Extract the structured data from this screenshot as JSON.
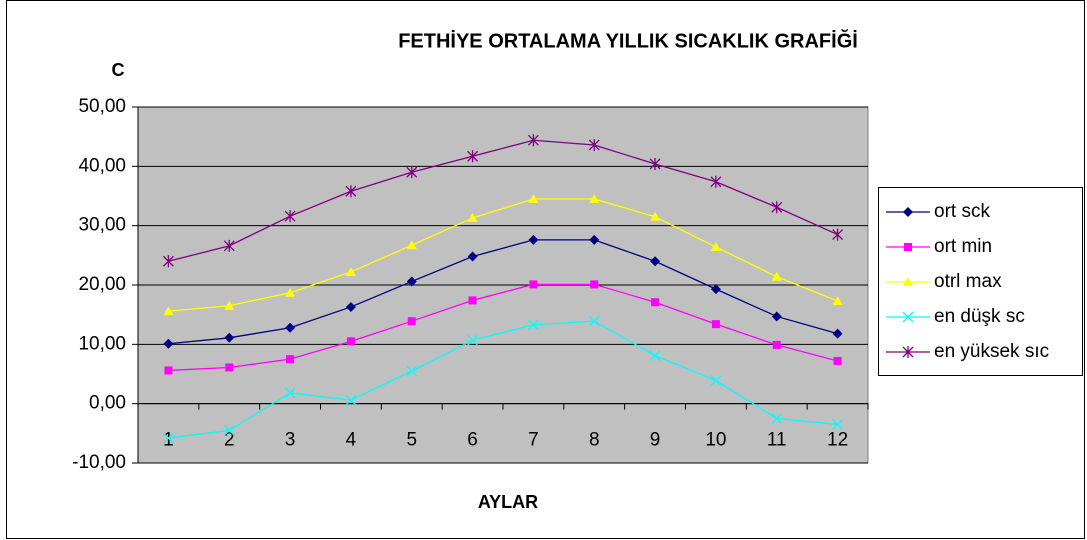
{
  "chart_data": {
    "type": "line",
    "title": "FETHİYE ORTALAMA YILLIK SICAKLIK GRAFİĞİ",
    "y_label": "C",
    "x_label": "AYLAR",
    "categories": [
      "1",
      "2",
      "3",
      "4",
      "5",
      "6",
      "7",
      "8",
      "9",
      "10",
      "11",
      "12"
    ],
    "series": [
      {
        "name": "ort sck",
        "color": "#000080",
        "marker": "diamond",
        "values": [
          10.1,
          11.1,
          12.8,
          16.3,
          20.6,
          24.8,
          27.6,
          27.6,
          24.0,
          19.3,
          14.7,
          11.8
        ]
      },
      {
        "name": "ort min",
        "color": "#ff00ff",
        "marker": "square",
        "values": [
          5.6,
          6.1,
          7.5,
          10.5,
          13.9,
          17.4,
          20.1,
          20.1,
          17.1,
          13.4,
          9.9,
          7.2
        ]
      },
      {
        "name": "otrl max",
        "color": "#ffff00",
        "marker": "triangle",
        "values": [
          15.6,
          16.5,
          18.7,
          22.2,
          26.7,
          31.3,
          34.5,
          34.5,
          31.5,
          26.4,
          21.4,
          17.3
        ]
      },
      {
        "name": "en düşk sc",
        "color": "#00ffff",
        "marker": "x",
        "values": [
          -5.8,
          -4.5,
          1.8,
          0.6,
          5.5,
          10.7,
          13.3,
          13.9,
          8.1,
          3.9,
          -2.5,
          -3.5
        ]
      },
      {
        "name": "en yüksek sıc",
        "color": "#800080",
        "marker": "star",
        "values": [
          24.0,
          26.6,
          31.6,
          35.8,
          39.0,
          41.7,
          44.4,
          43.6,
          40.4,
          37.4,
          33.1,
          28.5
        ]
      }
    ],
    "ylim": [
      -10,
      50
    ],
    "yticks": [
      {
        "value": -10,
        "label": "-10,00"
      },
      {
        "value": 0,
        "label": "0,00"
      },
      {
        "value": 10,
        "label": "10,00"
      },
      {
        "value": 20,
        "label": "20,00"
      },
      {
        "value": 30,
        "label": "30,00"
      },
      {
        "value": 40,
        "label": "40,00"
      },
      {
        "value": 50,
        "label": "50,00"
      }
    ],
    "grid": true,
    "legend": "right",
    "plot_background": "#c0c0c0"
  }
}
